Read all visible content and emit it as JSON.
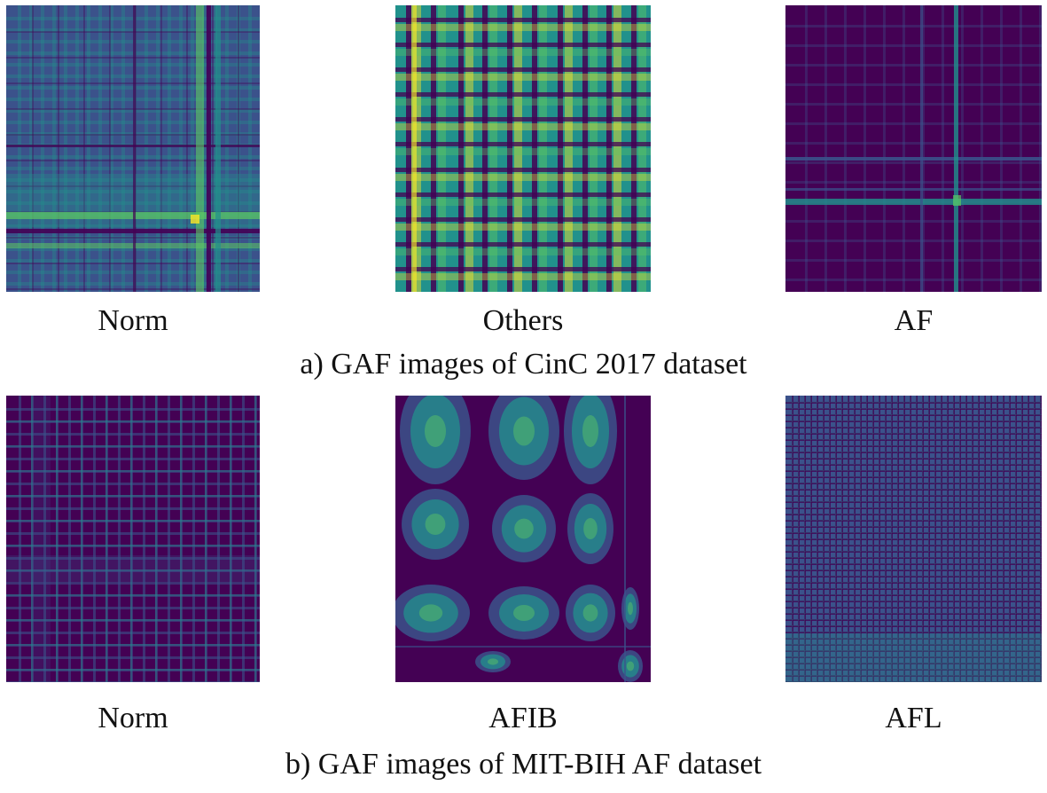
{
  "rows": [
    {
      "caption": "a) GAF images of CinC 2017 dataset",
      "panels": [
        {
          "label": "Norm",
          "pattern": "norm-cinc"
        },
        {
          "label": "Others",
          "pattern": "others"
        },
        {
          "label": "AF",
          "pattern": "af"
        }
      ]
    },
    {
      "caption": "b) GAF images of MIT-BIH AF dataset",
      "panels": [
        {
          "label": "Norm",
          "pattern": "norm-mit"
        },
        {
          "label": "AFIB",
          "pattern": "afib"
        },
        {
          "label": "AFL",
          "pattern": "afl"
        }
      ]
    }
  ],
  "colormap": {
    "name": "viridis",
    "stops": [
      "#440154",
      "#3b528b",
      "#21918c",
      "#5ec962",
      "#fde725"
    ]
  }
}
